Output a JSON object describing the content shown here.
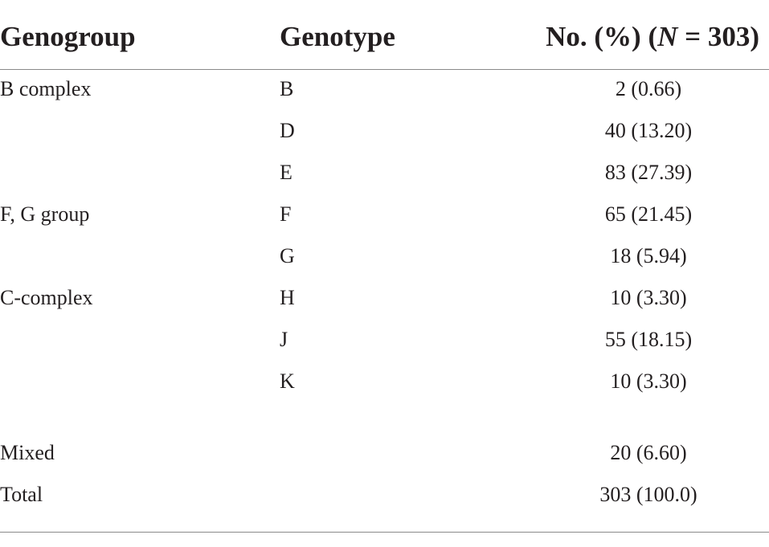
{
  "table": {
    "headers": {
      "genogroup": "Genogroup",
      "genotype": "Genotype",
      "count_prefix": "No. (%) (",
      "count_italic": "N",
      "count_suffix": " = 303)"
    },
    "rows": [
      {
        "genogroup": "B complex",
        "genotype": "B",
        "count": "2 (0.66)"
      },
      {
        "genogroup": "",
        "genotype": "D",
        "count": "40 (13.20)"
      },
      {
        "genogroup": "",
        "genotype": "E",
        "count": "83 (27.39)"
      },
      {
        "genogroup": "F, G group",
        "genotype": "F",
        "count": "65 (21.45)"
      },
      {
        "genogroup": "",
        "genotype": "G",
        "count": "18 (5.94)"
      },
      {
        "genogroup": "C-complex",
        "genotype": "H",
        "count": "10 (3.30)"
      },
      {
        "genogroup": "",
        "genotype": "J",
        "count": "55 (18.15)"
      },
      {
        "genogroup": "",
        "genotype": "K",
        "count": "10 (3.30)"
      },
      {
        "genogroup": "Mixed",
        "genotype": "",
        "count": "20 (6.60)"
      },
      {
        "genogroup": "Total",
        "genotype": "",
        "count": "303 (100.0)"
      }
    ]
  }
}
